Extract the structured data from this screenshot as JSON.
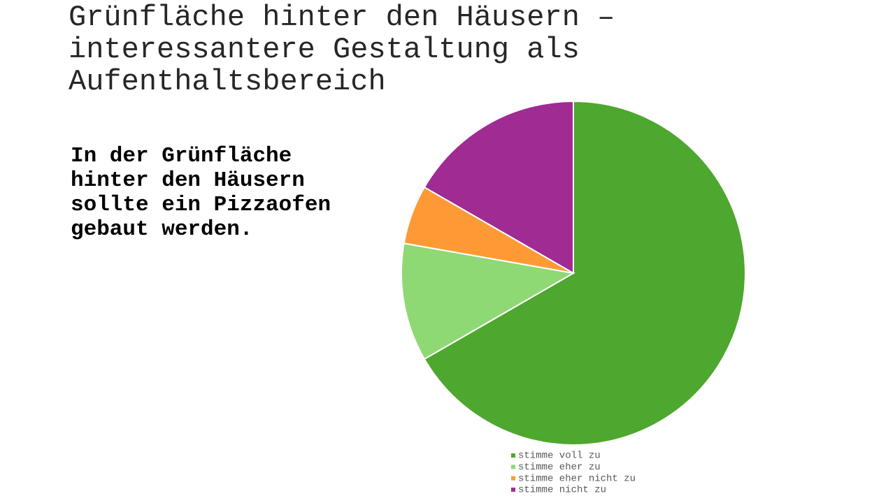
{
  "chart_data": {
    "type": "pie",
    "title": "Grünfläche hinter den Häusern – interessantere Gestaltung als Aufenthaltsbereich",
    "subtitle": "In der Grünfläche hinter den Häusern sollte ein Pizzaofen gebaut werden.",
    "categories": [
      "stimme voll zu",
      "stimme eher zu",
      "stimme eher nicht zu",
      "stimme nicht zu"
    ],
    "values": [
      12,
      2,
      1,
      3
    ],
    "colors": [
      "#4ea72e",
      "#8ed973",
      "#fe9a36",
      "#a02b93"
    ],
    "legend": "bottom"
  }
}
